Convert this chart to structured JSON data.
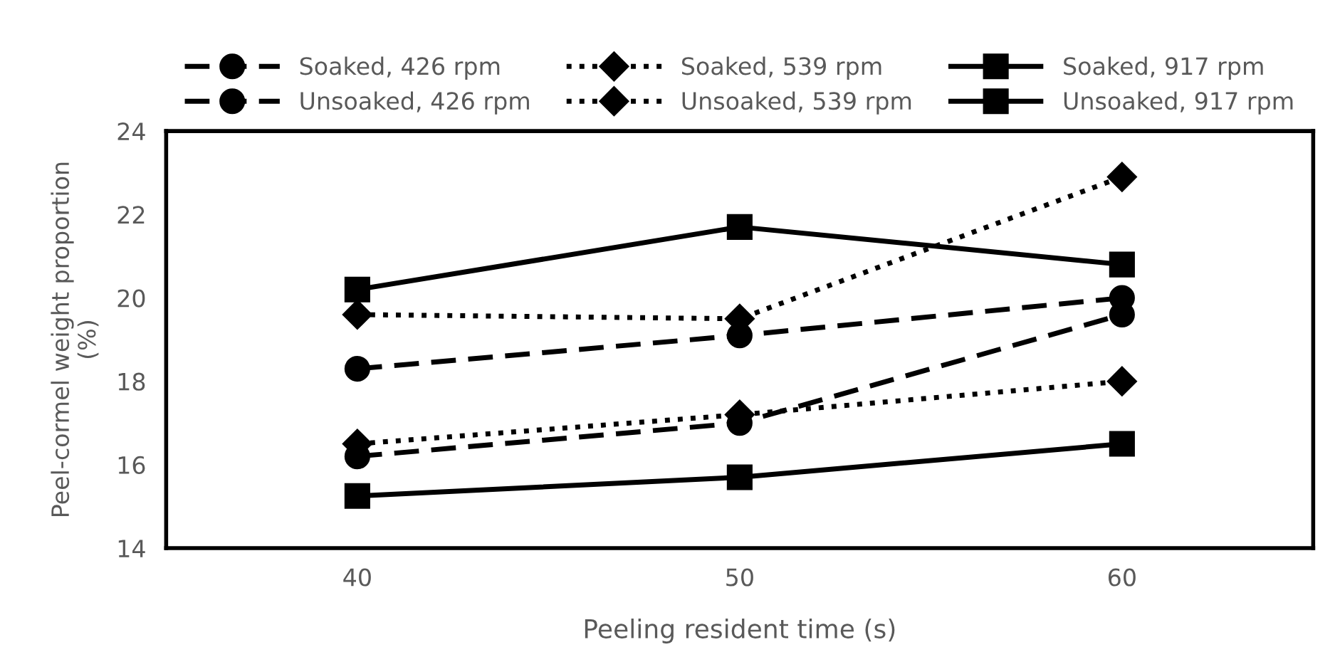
{
  "chart_data": {
    "type": "line",
    "xlabel": "Peeling resident time (s)",
    "ylabel": "Peel-cormel weight proportion\n(%)",
    "categories": [
      "40",
      "50",
      "60"
    ],
    "ylim": [
      14,
      24
    ],
    "yticks": [
      14,
      16,
      18,
      20,
      22,
      24
    ],
    "grid": false,
    "legend": "top",
    "series": [
      {
        "name": "Soaked, 426 rpm",
        "color": "#000000",
        "marker": "circle",
        "line_style": "dashed",
        "values": [
          18.3,
          19.1,
          20.0
        ]
      },
      {
        "name": "Soaked, 539 rpm",
        "color": "#000000",
        "marker": "diamond",
        "line_style": "dotted",
        "values": [
          19.6,
          19.5,
          22.9
        ]
      },
      {
        "name": "Soaked, 917 rpm",
        "color": "#000000",
        "marker": "square",
        "line_style": "solid",
        "values": [
          20.2,
          21.7,
          20.8
        ]
      },
      {
        "name": "Unsoaked, 426 rpm",
        "color": "#000000",
        "marker": "circle",
        "line_style": "dashed",
        "values": [
          16.2,
          17.0,
          19.6
        ]
      },
      {
        "name": "Unsoaked, 539 rpm",
        "color": "#000000",
        "marker": "diamond",
        "line_style": "dotted",
        "values": [
          16.5,
          17.2,
          18.0
        ]
      },
      {
        "name": "Unsoaked, 917 rpm",
        "color": "#000000",
        "marker": "square",
        "line_style": "solid",
        "values": [
          15.25,
          15.7,
          16.5
        ]
      }
    ]
  }
}
